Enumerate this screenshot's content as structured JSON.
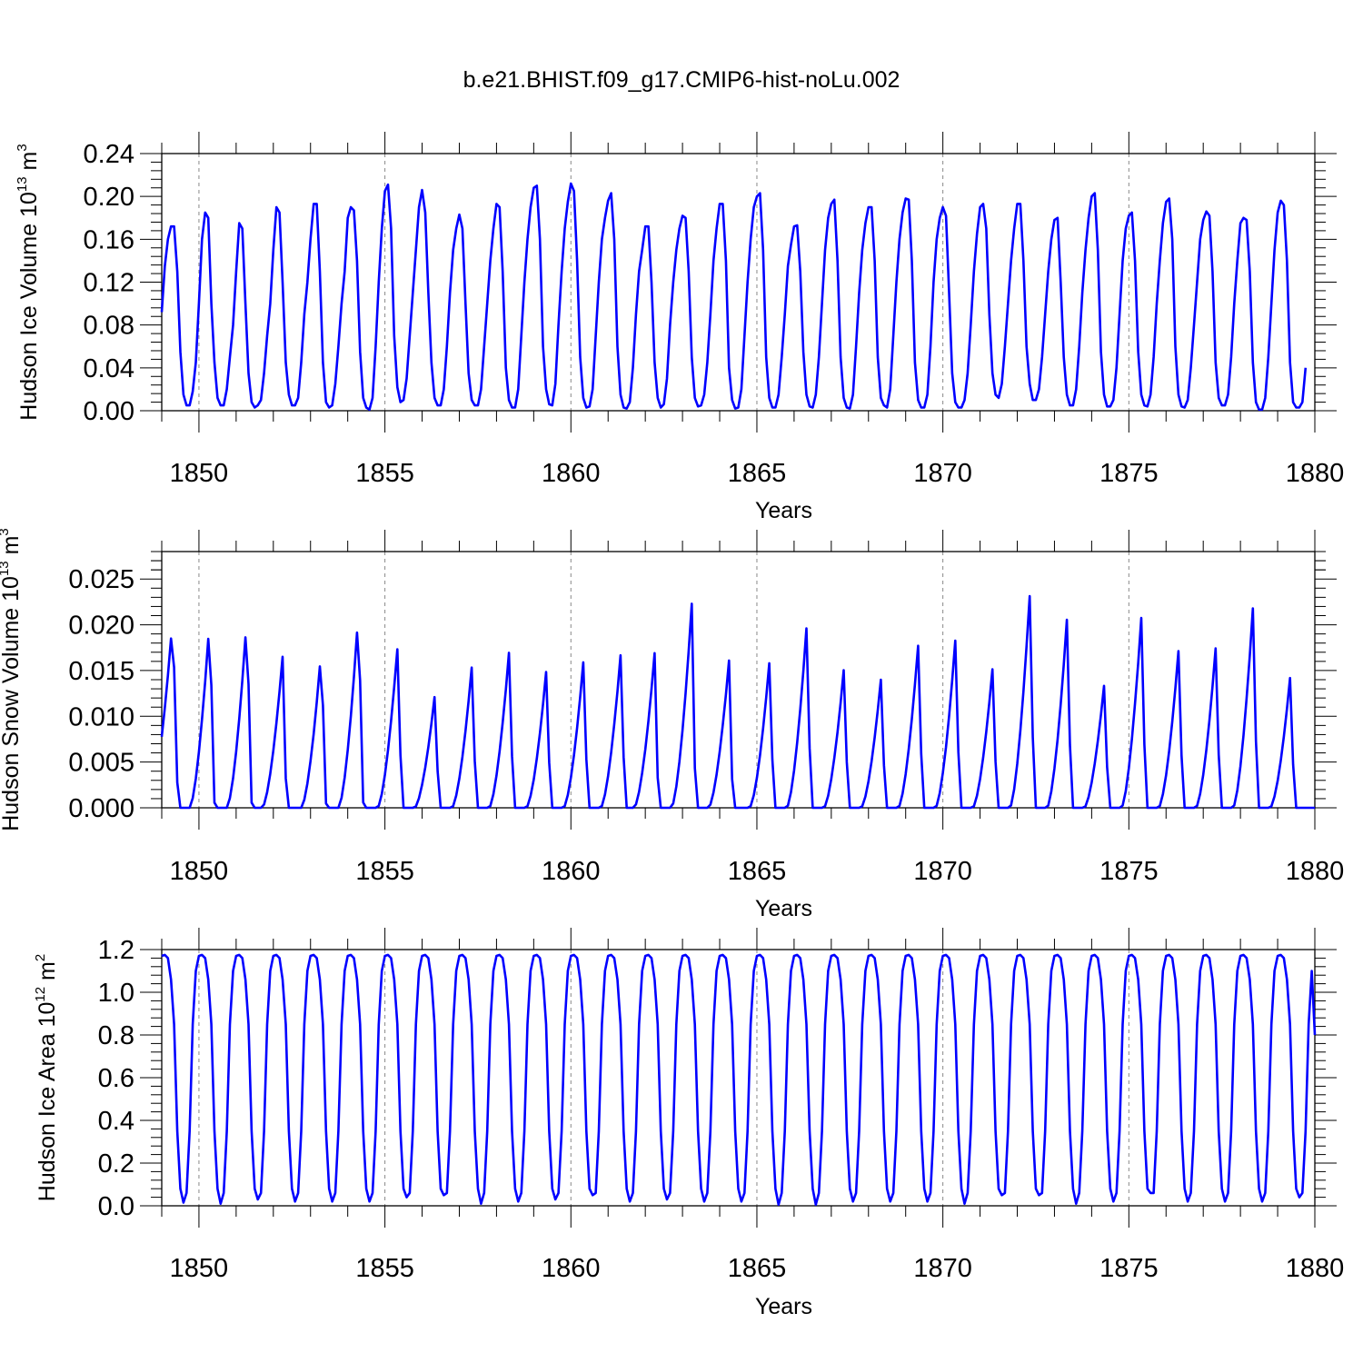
{
  "title": "b.e21.BHIST.f09_g17.CMIP6-hist-noLu.002",
  "colors": {
    "line": "#0000ff",
    "grid": "#888888",
    "axis": "#000000"
  },
  "chart_data": [
    {
      "type": "line",
      "xlabel": "Years",
      "ylabel": {
        "main": "Hudson Ice Volume 10",
        "exp": "13",
        "unit": " m",
        "unit_exp": "3"
      },
      "xlim": [
        1849,
        1880
      ],
      "ylim": [
        0,
        0.24
      ],
      "xticks": [
        1850,
        1855,
        1860,
        1865,
        1870,
        1875,
        1880
      ],
      "yticks": [
        0,
        0.04,
        0.08,
        0.12,
        0.16,
        0.2,
        0.24
      ],
      "ytick_labels": [
        "0.00",
        "0.04",
        "0.08",
        "0.12",
        "0.16",
        "0.20",
        "0.24"
      ],
      "grid": "vertical dashed at major x ticks",
      "series": [
        {
          "x_start": 1849.0,
          "step": 0.083333,
          "values": [
            0.092,
            0.135,
            0.16,
            0.172,
            0.172,
            0.13,
            0.055,
            0.015,
            0.005,
            0.005,
            0.018,
            0.045,
            0.1,
            0.16,
            0.185,
            0.18,
            0.1,
            0.045,
            0.012,
            0.005,
            0.005,
            0.02,
            0.05,
            0.08,
            0.13,
            0.175,
            0.17,
            0.1,
            0.035,
            0.008,
            0.003,
            0.005,
            0.01,
            0.035,
            0.07,
            0.1,
            0.15,
            0.19,
            0.185,
            0.12,
            0.045,
            0.015,
            0.005,
            0.005,
            0.012,
            0.045,
            0.09,
            0.12,
            0.16,
            0.193,
            0.193,
            0.13,
            0.045,
            0.008,
            0.003,
            0.005,
            0.025,
            0.06,
            0.1,
            0.13,
            0.18,
            0.19,
            0.187,
            0.14,
            0.055,
            0.012,
            0.003,
            0.001,
            0.012,
            0.06,
            0.12,
            0.17,
            0.205,
            0.211,
            0.17,
            0.07,
            0.022,
            0.008,
            0.01,
            0.03,
            0.07,
            0.11,
            0.15,
            0.19,
            0.206,
            0.185,
            0.11,
            0.045,
            0.012,
            0.005,
            0.005,
            0.02,
            0.06,
            0.11,
            0.15,
            0.17,
            0.183,
            0.17,
            0.1,
            0.035,
            0.01,
            0.005,
            0.005,
            0.02,
            0.06,
            0.1,
            0.14,
            0.17,
            0.193,
            0.19,
            0.13,
            0.04,
            0.01,
            0.003,
            0.003,
            0.02,
            0.07,
            0.12,
            0.16,
            0.19,
            0.208,
            0.21,
            0.16,
            0.06,
            0.02,
            0.006,
            0.005,
            0.025,
            0.08,
            0.13,
            0.17,
            0.195,
            0.212,
            0.205,
            0.14,
            0.05,
            0.012,
            0.003,
            0.004,
            0.02,
            0.07,
            0.12,
            0.16,
            0.18,
            0.196,
            0.203,
            0.16,
            0.06,
            0.015,
            0.003,
            0.002,
            0.008,
            0.04,
            0.09,
            0.13,
            0.15,
            0.172,
            0.172,
            0.12,
            0.045,
            0.012,
            0.003,
            0.006,
            0.03,
            0.08,
            0.12,
            0.15,
            0.17,
            0.182,
            0.18,
            0.13,
            0.05,
            0.012,
            0.004,
            0.005,
            0.015,
            0.045,
            0.09,
            0.14,
            0.17,
            0.193,
            0.193,
            0.14,
            0.04,
            0.01,
            0.002,
            0.003,
            0.02,
            0.07,
            0.12,
            0.16,
            0.19,
            0.2,
            0.203,
            0.15,
            0.05,
            0.012,
            0.003,
            0.003,
            0.015,
            0.05,
            0.09,
            0.135,
            0.155,
            0.172,
            0.173,
            0.13,
            0.055,
            0.015,
            0.004,
            0.003,
            0.015,
            0.05,
            0.1,
            0.15,
            0.18,
            0.193,
            0.197,
            0.14,
            0.05,
            0.012,
            0.003,
            0.002,
            0.015,
            0.06,
            0.11,
            0.15,
            0.175,
            0.19,
            0.19,
            0.14,
            0.05,
            0.012,
            0.005,
            0.003,
            0.02,
            0.07,
            0.12,
            0.16,
            0.185,
            0.198,
            0.197,
            0.14,
            0.045,
            0.01,
            0.003,
            0.003,
            0.015,
            0.06,
            0.12,
            0.16,
            0.18,
            0.19,
            0.182,
            0.11,
            0.035,
            0.008,
            0.003,
            0.003,
            0.01,
            0.035,
            0.08,
            0.13,
            0.165,
            0.19,
            0.193,
            0.17,
            0.09,
            0.035,
            0.015,
            0.012,
            0.025,
            0.06,
            0.1,
            0.14,
            0.17,
            0.193,
            0.193,
            0.14,
            0.06,
            0.025,
            0.01,
            0.01,
            0.02,
            0.05,
            0.09,
            0.13,
            0.16,
            0.178,
            0.18,
            0.12,
            0.05,
            0.015,
            0.005,
            0.005,
            0.02,
            0.06,
            0.11,
            0.15,
            0.18,
            0.2,
            0.203,
            0.15,
            0.055,
            0.015,
            0.004,
            0.004,
            0.01,
            0.04,
            0.09,
            0.14,
            0.17,
            0.182,
            0.185,
            0.14,
            0.055,
            0.015,
            0.005,
            0.004,
            0.015,
            0.05,
            0.1,
            0.14,
            0.175,
            0.195,
            0.198,
            0.16,
            0.06,
            0.015,
            0.004,
            0.003,
            0.01,
            0.04,
            0.08,
            0.12,
            0.16,
            0.178,
            0.186,
            0.182,
            0.13,
            0.045,
            0.012,
            0.005,
            0.005,
            0.015,
            0.05,
            0.1,
            0.14,
            0.175,
            0.18,
            0.178,
            0.13,
            0.045,
            0.008,
            0.001,
            0.001,
            0.012,
            0.05,
            0.1,
            0.15,
            0.185,
            0.196,
            0.192,
            0.14,
            0.045,
            0.008,
            0.003,
            0.003,
            0.008,
            0.04
          ]
        }
      ]
    },
    {
      "type": "line",
      "xlabel": "Years",
      "ylabel": {
        "main": "Hudson Snow Volume 10",
        "exp": "13",
        "unit": " m",
        "unit_exp": "3"
      },
      "xlim": [
        1849,
        1880
      ],
      "ylim": [
        0,
        0.028
      ],
      "xticks": [
        1850,
        1855,
        1860,
        1865,
        1870,
        1875,
        1880
      ],
      "yticks": [
        0,
        0.005,
        0.01,
        0.015,
        0.02,
        0.025
      ],
      "ytick_labels": [
        "0.000",
        "0.005",
        "0.010",
        "0.015",
        "0.020",
        "0.025"
      ],
      "grid": "vertical dashed at major x ticks",
      "series": [
        {
          "x_start": 1849.0,
          "step": 0.083333,
          "peaks": [
            [
              1849.0,
              0.006
            ],
            [
              1849.2,
              0.016
            ],
            [
              1849.25,
              0.0185
            ],
            [
              1849.33,
              0.016
            ],
            [
              1850.3,
              0.0215
            ],
            [
              1851.3,
              0.0217
            ],
            [
              1852.25,
              0.0165
            ],
            [
              1853.3,
              0.018
            ],
            [
              1854.3,
              0.0223
            ],
            [
              1855.35,
              0.0182
            ],
            [
              1856.35,
              0.0127
            ],
            [
              1857.35,
              0.0161
            ],
            [
              1858.35,
              0.0178
            ],
            [
              1859.35,
              0.0156
            ],
            [
              1860.35,
              0.0167
            ],
            [
              1861.35,
              0.0175
            ],
            [
              1862.25,
              0.0169
            ],
            [
              1863.25,
              0.0223
            ],
            [
              1864.25,
              0.0161
            ],
            [
              1865.35,
              0.0166
            ],
            [
              1866.35,
              0.0206
            ],
            [
              1867.35,
              0.0158
            ],
            [
              1868.35,
              0.0147
            ],
            [
              1869.35,
              0.0186
            ],
            [
              1870.35,
              0.0192
            ],
            [
              1871.35,
              0.0159
            ],
            [
              1872.35,
              0.0243
            ],
            [
              1873.35,
              0.0216
            ],
            [
              1874.35,
              0.014
            ],
            [
              1875.35,
              0.0218
            ],
            [
              1876.35,
              0.018
            ],
            [
              1877.35,
              0.0183
            ],
            [
              1878.35,
              0.0229
            ],
            [
              1879.35,
              0.0149
            ]
          ]
        }
      ]
    },
    {
      "type": "line",
      "xlabel": "Years",
      "ylabel": {
        "main": "Hudson Ice Area 10",
        "exp": "12",
        "unit": " m",
        "unit_exp": "2"
      },
      "xlim": [
        1849,
        1880
      ],
      "ylim": [
        0,
        1.2
      ],
      "xticks": [
        1850,
        1855,
        1860,
        1865,
        1870,
        1875,
        1880
      ],
      "yticks": [
        0,
        0.2,
        0.4,
        0.6,
        0.8,
        1.0,
        1.2
      ],
      "ytick_labels": [
        "0.0",
        "0.2",
        "0.4",
        "0.6",
        "0.8",
        "1.0",
        "1.2"
      ],
      "reference_line": 1.2,
      "grid": "vertical dashed at major x ticks",
      "series": [
        {
          "x_start": 1849.0,
          "step": 0.083333,
          "annual_cycle": [
            1.17,
            1.175,
            1.16,
            1.06,
            0.85,
            0.35,
            0.08,
            0.015,
            0.06,
            0.35,
            0.85,
            1.1
          ],
          "summer_minima": [
            0.015,
            0.01,
            0.03,
            0.02,
            0.02,
            0.02,
            0.04,
            0.05,
            0.01,
            0.02,
            0.03,
            0.05,
            0.02,
            0.03,
            0.02,
            0.02,
            0.005,
            0.005,
            0.02,
            0.02,
            0.02,
            0.01,
            0.05,
            0.05,
            0.01,
            0.02,
            0.06,
            0.02,
            0.02,
            0.02,
            0.04
          ]
        }
      ]
    }
  ]
}
